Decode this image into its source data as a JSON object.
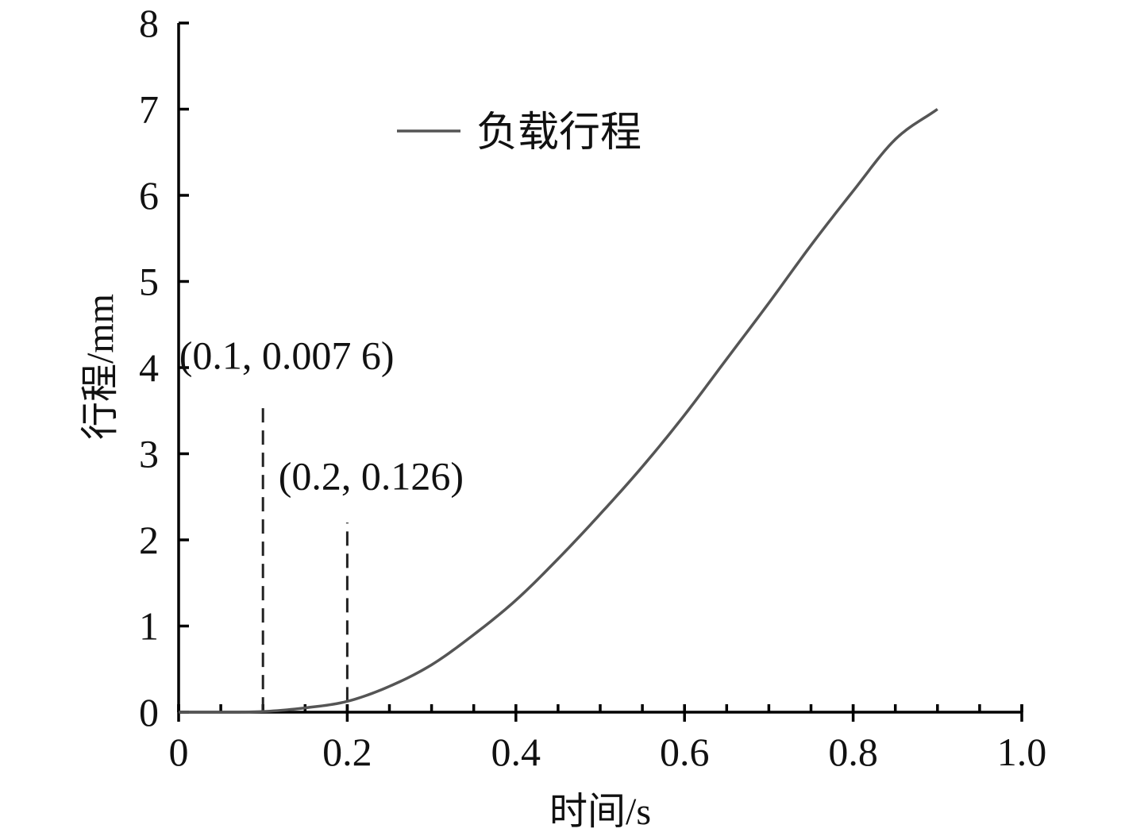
{
  "chart_data": {
    "type": "line",
    "title": "",
    "xlabel": "时间/s",
    "ylabel": "行程/mm",
    "xlim": [
      0,
      1.0
    ],
    "ylim": [
      0,
      8
    ],
    "x_ticks": [
      0,
      0.2,
      0.4,
      0.6,
      0.8,
      1.0
    ],
    "x_tick_labels": [
      "0",
      "0.2",
      "0.4",
      "0.6",
      "0.8",
      "1.0"
    ],
    "x_minor_step": 0.05,
    "y_ticks": [
      0,
      1,
      2,
      3,
      4,
      5,
      6,
      7,
      8
    ],
    "y_tick_labels": [
      "0",
      "1",
      "2",
      "3",
      "4",
      "5",
      "6",
      "7",
      "8"
    ],
    "grid": false,
    "legend": {
      "position": "top-left",
      "entries": [
        "负载行程"
      ]
    },
    "line_color": "#555555",
    "series": [
      {
        "name": "负载行程",
        "x": [
          0,
          0.05,
          0.1,
          0.15,
          0.2,
          0.25,
          0.3,
          0.35,
          0.4,
          0.45,
          0.5,
          0.55,
          0.6,
          0.65,
          0.7,
          0.75,
          0.8,
          0.85,
          0.9
        ],
        "y": [
          0,
          0,
          0.0076,
          0.05,
          0.126,
          0.3,
          0.55,
          0.9,
          1.3,
          1.78,
          2.3,
          2.85,
          3.45,
          4.1,
          4.75,
          5.42,
          6.05,
          6.65,
          7.0
        ]
      }
    ],
    "annotations": [
      {
        "text": "(0.1, 0.007 6)",
        "x": 0.1,
        "y": 0.0076,
        "guide_to_y": 3.6
      },
      {
        "text": "(0.2, 0.126)",
        "x": 0.2,
        "y": 0.126,
        "guide_to_y": 2.2
      }
    ]
  }
}
